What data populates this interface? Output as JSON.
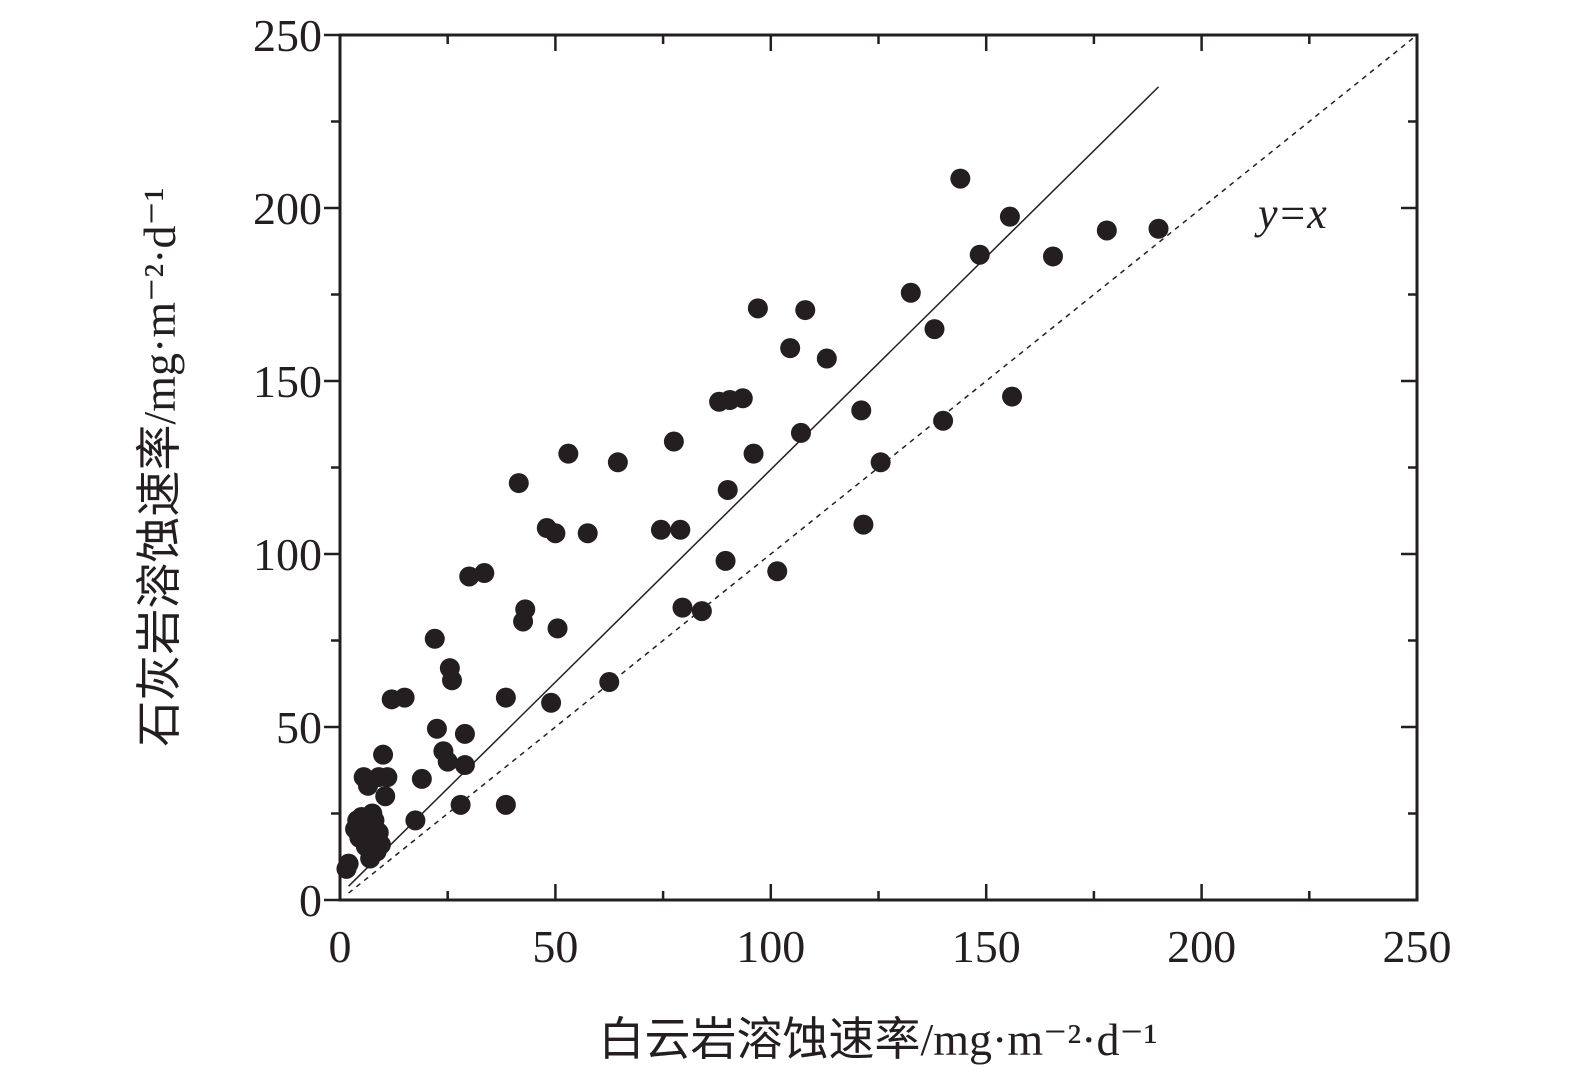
{
  "chart_data": {
    "type": "scatter",
    "title": "",
    "xlabel": "白云岩溶蚀速率/mg·m⁻²·d⁻¹",
    "ylabel": "石灰岩溶蚀速率/mg·m⁻²·d⁻¹",
    "xlim": [
      0,
      250
    ],
    "ylim": [
      0,
      250
    ],
    "x_ticks": [
      "0",
      "50",
      "100",
      "150",
      "200",
      "250"
    ],
    "y_ticks": [
      "0",
      "50",
      "100",
      "150",
      "200",
      "250"
    ],
    "grid": false,
    "legend": "none",
    "annotation": "y=x",
    "colors": {
      "points": "#231f20",
      "axis": "#231f20",
      "fit_line": "#231f20",
      "reference_line": "#231f20"
    },
    "fit_line": {
      "x": [
        2,
        190
      ],
      "y": [
        4,
        235
      ]
    },
    "reference_line": {
      "x": [
        2,
        250
      ],
      "y": [
        2,
        250
      ]
    },
    "points": {
      "x": [
        1.5,
        2,
        3.5,
        4,
        4.5,
        5,
        5.5,
        6,
        6.5,
        7,
        7,
        7.5,
        8,
        8,
        8.5,
        9,
        9.5,
        5,
        7,
        10,
        9,
        8,
        10.5,
        11,
        12,
        15,
        17.5,
        19,
        22,
        22.5,
        24,
        25,
        26,
        25.5,
        28,
        29,
        29,
        30,
        33.5,
        38.5,
        38.5,
        41.5,
        42.5,
        43,
        48,
        49,
        50,
        50.5,
        53,
        57.5,
        62.5,
        64.5,
        74.5,
        77.5,
        79,
        79.5,
        84,
        88,
        89.5,
        90,
        90.5,
        93.5,
        96,
        97,
        101.5,
        104.5,
        107,
        108,
        113,
        121,
        121.5,
        125.5,
        132.5,
        138,
        140,
        144,
        148.5,
        155.5,
        156,
        165.5,
        178,
        190
      ],
      "y": [
        9,
        10.5,
        20.5,
        23,
        18,
        24,
        35.5,
        15.5,
        33,
        12,
        16,
        25,
        18,
        23,
        14,
        19.5,
        16,
        22,
        20,
        42,
        35.5,
        21,
        30,
        35.5,
        58,
        58.5,
        23,
        35,
        75.5,
        49.5,
        43,
        40,
        63.5,
        67,
        27.5,
        48,
        39,
        93.5,
        94.5,
        58.5,
        27.5,
        120.5,
        80.5,
        84,
        107.5,
        57,
        106,
        78.5,
        129,
        106,
        63,
        126.5,
        107,
        132.5,
        107,
        84.5,
        83.5,
        144,
        98,
        118.5,
        144.5,
        145,
        129,
        171,
        95,
        159.5,
        135,
        170.5,
        156.5,
        141.5,
        108.5,
        126.5,
        175.5,
        165,
        138.5,
        208.5,
        186.5,
        197.5,
        145.5,
        186,
        193.5,
        194
      ]
    }
  }
}
